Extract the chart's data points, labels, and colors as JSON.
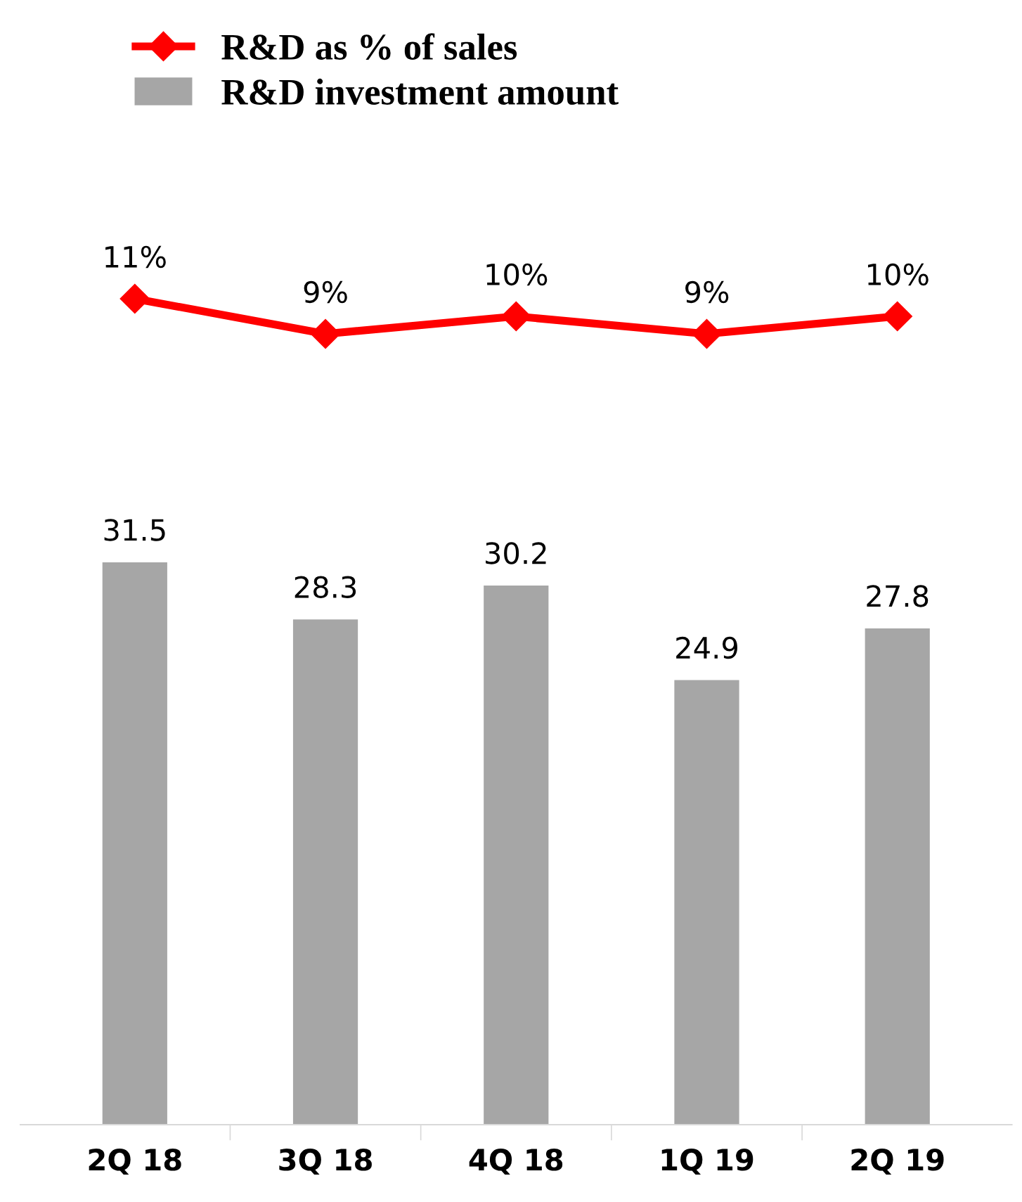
{
  "chart_data": [
    {
      "type": "line",
      "categories": [
        null,
        null,
        null,
        null,
        null
      ],
      "series": [
        {
          "name": "R&D as % of sales",
          "color": "#ff0000",
          "values": [
            11,
            9,
            10,
            9,
            10
          ],
          "value_labels": [
            "11%",
            "9%",
            "10%",
            "9%",
            "10%"
          ]
        }
      ],
      "marker": "diamond",
      "tick_labels": false,
      "legend": "top left"
    },
    {
      "type": "bar",
      "categories": [
        "2Q 18",
        "3Q 18",
        "4Q 18",
        "1Q 19",
        "2Q 19"
      ],
      "series": [
        {
          "name": "R&D investment amount",
          "color": "#a6a6a6",
          "values": [
            31.5,
            28.3,
            30.2,
            24.9,
            27.8
          ]
        }
      ],
      "data_labels": true,
      "tick_labels": "x",
      "legend": "top left"
    }
  ]
}
